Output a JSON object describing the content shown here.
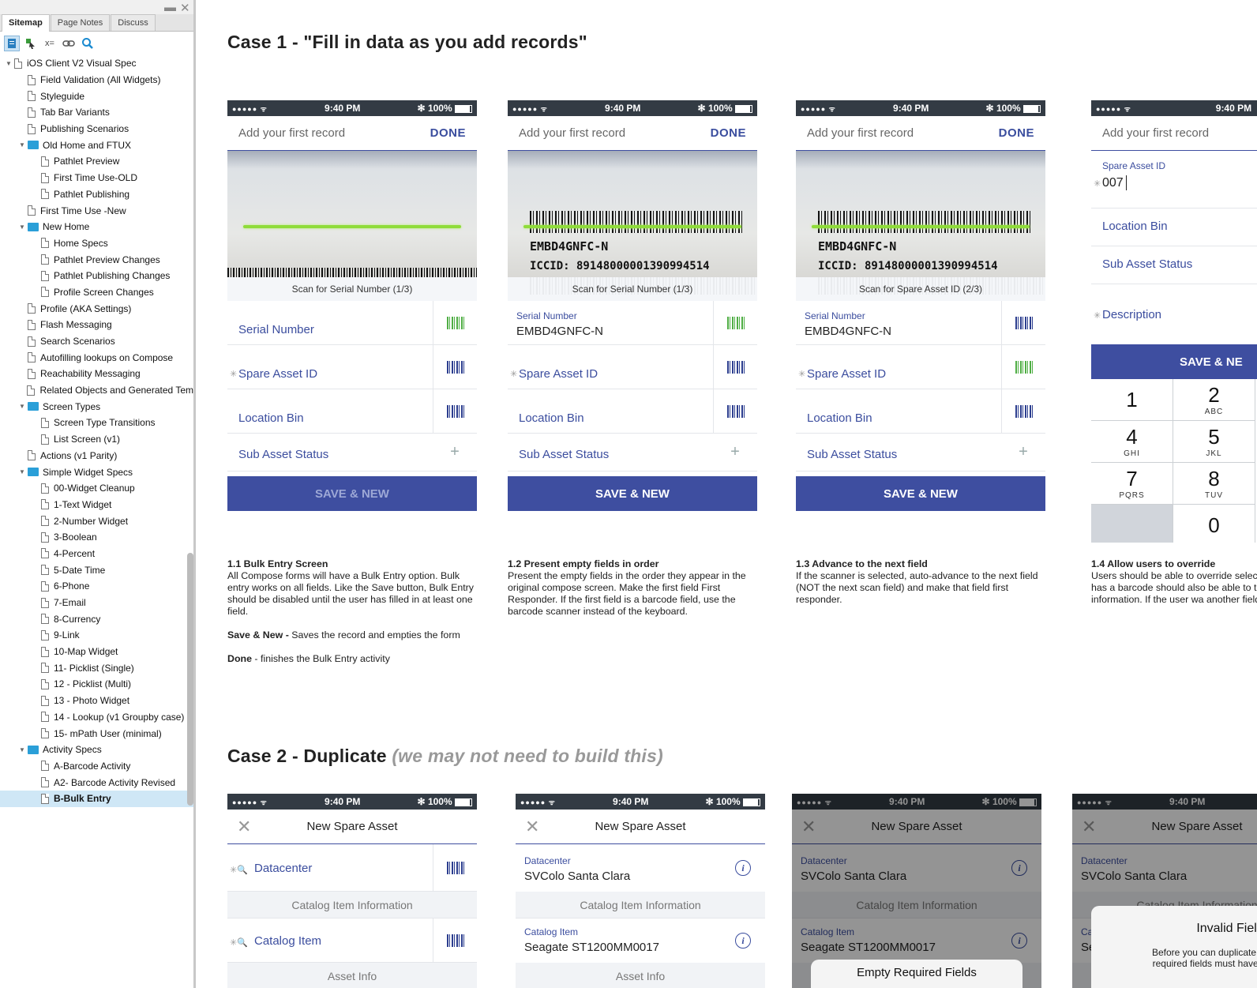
{
  "sidebar": {
    "tabs": [
      "Sitemap",
      "Page Notes",
      "Discuss"
    ],
    "tree": [
      {
        "label": "iOS Client V2 Visual Spec",
        "level": 0,
        "kind": "page",
        "open": true
      },
      {
        "label": "Field Validation (All Widgets)",
        "level": 1,
        "kind": "page"
      },
      {
        "label": "Styleguide",
        "level": 1,
        "kind": "page"
      },
      {
        "label": "Tab Bar Variants",
        "level": 1,
        "kind": "page"
      },
      {
        "label": "Publishing Scenarios",
        "level": 1,
        "kind": "page"
      },
      {
        "label": "Old Home and FTUX",
        "level": 1,
        "kind": "folder",
        "open": true
      },
      {
        "label": "Pathlet Preview",
        "level": 2,
        "kind": "page"
      },
      {
        "label": "First Time Use-OLD",
        "level": 2,
        "kind": "page"
      },
      {
        "label": "Pathlet Publishing",
        "level": 2,
        "kind": "page"
      },
      {
        "label": "First Time Use -New",
        "level": 1,
        "kind": "page"
      },
      {
        "label": "New Home",
        "level": 1,
        "kind": "folder",
        "open": true
      },
      {
        "label": "Home Specs",
        "level": 2,
        "kind": "page"
      },
      {
        "label": "Pathlet Preview Changes",
        "level": 2,
        "kind": "page"
      },
      {
        "label": "Pathlet Publishing Changes",
        "level": 2,
        "kind": "page"
      },
      {
        "label": "Profile Screen Changes",
        "level": 2,
        "kind": "page"
      },
      {
        "label": "Profile (AKA Settings)",
        "level": 1,
        "kind": "page"
      },
      {
        "label": "Flash Messaging",
        "level": 1,
        "kind": "page"
      },
      {
        "label": "Search Scenarios",
        "level": 1,
        "kind": "page"
      },
      {
        "label": "Autofilling lookups on Compose",
        "level": 1,
        "kind": "page"
      },
      {
        "label": "Reachability Messaging",
        "level": 1,
        "kind": "page"
      },
      {
        "label": "Related Objects and Generated Tem",
        "level": 1,
        "kind": "page"
      },
      {
        "label": "Screen Types",
        "level": 1,
        "kind": "folder",
        "open": true
      },
      {
        "label": "Screen Type Transitions",
        "level": 2,
        "kind": "page"
      },
      {
        "label": "List Screen (v1)",
        "level": 2,
        "kind": "page"
      },
      {
        "label": "Actions (v1 Parity)",
        "level": 1,
        "kind": "page"
      },
      {
        "label": "Simple Widget Specs",
        "level": 1,
        "kind": "folder",
        "open": true
      },
      {
        "label": "00-Widget Cleanup",
        "level": 2,
        "kind": "page"
      },
      {
        "label": "1-Text Widget",
        "level": 2,
        "kind": "page"
      },
      {
        "label": "2-Number Widget",
        "level": 2,
        "kind": "page"
      },
      {
        "label": "3-Boolean",
        "level": 2,
        "kind": "page"
      },
      {
        "label": "4-Percent",
        "level": 2,
        "kind": "page"
      },
      {
        "label": "5-Date Time",
        "level": 2,
        "kind": "page"
      },
      {
        "label": "6-Phone",
        "level": 2,
        "kind": "page"
      },
      {
        "label": "7-Email",
        "level": 2,
        "kind": "page"
      },
      {
        "label": "8-Currency",
        "level": 2,
        "kind": "page"
      },
      {
        "label": "9-Link",
        "level": 2,
        "kind": "page"
      },
      {
        "label": "10-Map Widget",
        "level": 2,
        "kind": "page"
      },
      {
        "label": "11- Picklist (Single)",
        "level": 2,
        "kind": "page"
      },
      {
        "label": "12 - Picklist (Multi)",
        "level": 2,
        "kind": "page"
      },
      {
        "label": "13 - Photo Widget",
        "level": 2,
        "kind": "page"
      },
      {
        "label": "14 - Lookup (v1 Groupby case)",
        "level": 2,
        "kind": "page"
      },
      {
        "label": "15- mPath User (minimal)",
        "level": 2,
        "kind": "page"
      },
      {
        "label": "Activity Specs",
        "level": 1,
        "kind": "folder",
        "open": true
      },
      {
        "label": "A-Barcode Activity",
        "level": 2,
        "kind": "page"
      },
      {
        "label": "A2- Barcode Activity Revised",
        "level": 2,
        "kind": "page"
      },
      {
        "label": "B-Bulk Entry",
        "level": 2,
        "kind": "page",
        "selected": true
      }
    ]
  },
  "status": {
    "time": "9:40 PM",
    "battery": "100%",
    "signal": "●●●●● ᯤ",
    "bt": "✻"
  },
  "case1": {
    "title": "Case 1 - \"Fill in data as you add records\"",
    "nav_title": "Add your first record",
    "done": "DONE",
    "save_new": "SAVE & NEW",
    "screens": [
      {
        "scan_label": "Scan for Serial Number (1/3)",
        "barcode": false,
        "fields": [
          {
            "label": "Serial Number",
            "value": "",
            "required": false,
            "icon": "barcode-green"
          },
          {
            "label": "Spare Asset ID",
            "value": "",
            "required": true,
            "icon": "barcode"
          },
          {
            "label": "Location Bin",
            "value": "",
            "required": false,
            "icon": "barcode"
          },
          {
            "label": "Sub Asset Status",
            "value": "",
            "required": false,
            "icon": "plus"
          }
        ],
        "save_enabled": false
      },
      {
        "scan_label": "Scan for Serial Number (1/3)",
        "barcode": true,
        "fields": [
          {
            "label": "Serial Number",
            "value": "EMBD4GNFC-N",
            "required": false,
            "icon": "barcode-green"
          },
          {
            "label": "Spare Asset ID",
            "value": "",
            "required": true,
            "icon": "barcode"
          },
          {
            "label": "Location Bin",
            "value": "",
            "required": false,
            "icon": "barcode"
          },
          {
            "label": "Sub Asset Status",
            "value": "",
            "required": false,
            "icon": "plus"
          }
        ],
        "save_enabled": true
      },
      {
        "scan_label": "Scan for Spare Asset ID (2/3)",
        "barcode": true,
        "fields": [
          {
            "label": "Serial Number",
            "value": "EMBD4GNFC-N",
            "required": false,
            "icon": "barcode"
          },
          {
            "label": "Spare Asset ID",
            "value": "",
            "required": true,
            "icon": "barcode-green"
          },
          {
            "label": "Location Bin",
            "value": "",
            "required": false,
            "icon": "barcode"
          },
          {
            "label": "Sub Asset Status",
            "value": "",
            "required": false,
            "icon": "plus"
          }
        ],
        "save_enabled": true
      }
    ],
    "barcode_text": {
      "line1": "EMBD4GNFC-N",
      "line2": "ICCID: 89148000001390994514"
    },
    "screen4": {
      "spare_label": "Spare Asset ID",
      "spare_value": "007",
      "location": "Location Bin",
      "sub": "Sub Asset Status",
      "description": "Description",
      "save_new": "SAVE & NE",
      "keys": [
        {
          "n": "1",
          "l": ""
        },
        {
          "n": "2",
          "l": "ABC"
        },
        {
          "n": "4",
          "l": "GHI"
        },
        {
          "n": "5",
          "l": "JKL"
        },
        {
          "n": "7",
          "l": "PQRS"
        },
        {
          "n": "8",
          "l": "TUV"
        },
        {
          "n": "",
          "l": ""
        },
        {
          "n": "0",
          "l": ""
        }
      ]
    },
    "notes": [
      {
        "title": "1.1 Bulk Entry Screen",
        "body": "All Compose forms will have a Bulk Entry option. Bulk entry works on all fields. Like the Save button, Bulk Entry should be disabled until the user has filled in at least one field.",
        "extra1_b": "Save & New -",
        "extra1": " Saves the record and empties the form",
        "extra2_b": "Done",
        "extra2": " - finishes the Bulk Entry activity"
      },
      {
        "title": "1.2 Present empty fields in order",
        "body": "Present the empty fields in the order they appear in the original compose screen. Make the first field First Responder. If the first field is a barcode field, use the barcode scanner instead of the keyboard."
      },
      {
        "title": "1.3 Advance to the next field",
        "body": "If the scanner is selected, auto-advance to the next field (NOT the next scan field) and make that field first responder."
      },
      {
        "title": "1.4 Allow users to override",
        "body": "Users should be able to override selection. If the field has a barcode should also be able to tap the text type in information. If the user wa another field, they can do so."
      }
    ]
  },
  "case2": {
    "title": "Case 2 - Duplicate",
    "subtitle": "(we may not need to build this)",
    "nav_title": "New Spare Asset",
    "datacenter": "Datacenter",
    "datacenter_value": "SVColo Santa Clara",
    "catalog_info": "Catalog Item Information",
    "catalog_item": "Catalog Item",
    "catalog_value": "Seagate ST1200MM0017",
    "asset_info": "Asset Info",
    "alert3": "Empty Required Fields",
    "alert4_title": "Invalid Fields",
    "alert4_body": "Before you can duplicate this",
    "alert4_body2": "required fields must have val"
  }
}
